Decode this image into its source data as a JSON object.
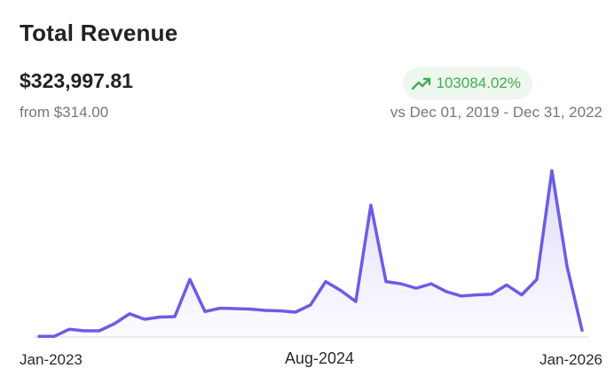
{
  "card": {
    "title": "Total Revenue",
    "total_value": "$323,997.81",
    "from_text": "from $314.00",
    "change_percent": "103084.02%",
    "period_text": "vs Dec 01, 2019 - Dec 31, 2022",
    "icon": "trending-up-icon",
    "colors": {
      "line": "#6b5ce7",
      "badge_bg": "#eef7ee",
      "badge_text": "#3fae4f"
    }
  },
  "chart_data": {
    "type": "area",
    "x_tick_labels": [
      "Jan-2023",
      "Aug-2024",
      "Jan-2026"
    ],
    "grid": false,
    "values": [
      0.3,
      0.3,
      3.5,
      2.8,
      2.8,
      6.0,
      10.5,
      8.0,
      9.0,
      9.2,
      26.0,
      11.5,
      13.0,
      12.8,
      12.6,
      12.0,
      11.8,
      11.2,
      14.5,
      25.0,
      21.0,
      16.0,
      59.5,
      25.0,
      24.0,
      22.0,
      24.0,
      20.5,
      18.5,
      19.0,
      19.3,
      23.5,
      19.0,
      26.0,
      75.0,
      32.0,
      3.0
    ],
    "ylim": [
      0,
      80
    ]
  }
}
